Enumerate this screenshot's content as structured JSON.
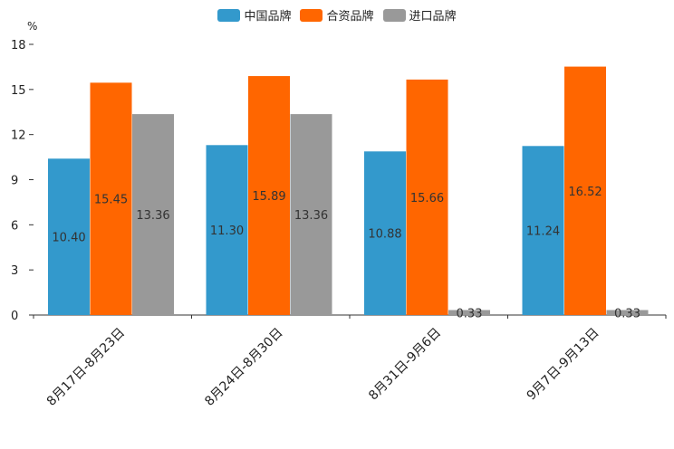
{
  "chart_data": {
    "type": "bar",
    "title": "",
    "unit_label": "%",
    "categories": [
      "8月17日-8月23日",
      "8月24日-8月30日",
      "8月31日-9月6日",
      "9月7日-9月13日"
    ],
    "series": [
      {
        "name": "中国品牌",
        "color": "#3399cc",
        "values": [
          10.4,
          11.3,
          10.88,
          11.24
        ],
        "labels": [
          "10.40",
          "11.30",
          "10.88",
          "11.24"
        ]
      },
      {
        "name": "合资品牌",
        "color": "#ff6600",
        "values": [
          15.45,
          15.89,
          15.66,
          16.52
        ],
        "labels": [
          "15.45",
          "15.89",
          "15.66",
          "16.52"
        ]
      },
      {
        "name": "进口品牌",
        "color": "#999999",
        "values": [
          13.36,
          13.36,
          0.33,
          0.33
        ],
        "labels": [
          "13.36",
          "13.36",
          "0.33",
          "0.33"
        ]
      }
    ],
    "yticks": [
      0,
      3,
      6,
      9,
      12,
      15,
      18
    ],
    "ylim": [
      0,
      18
    ],
    "legend_position": "top-center",
    "grid": false
  }
}
